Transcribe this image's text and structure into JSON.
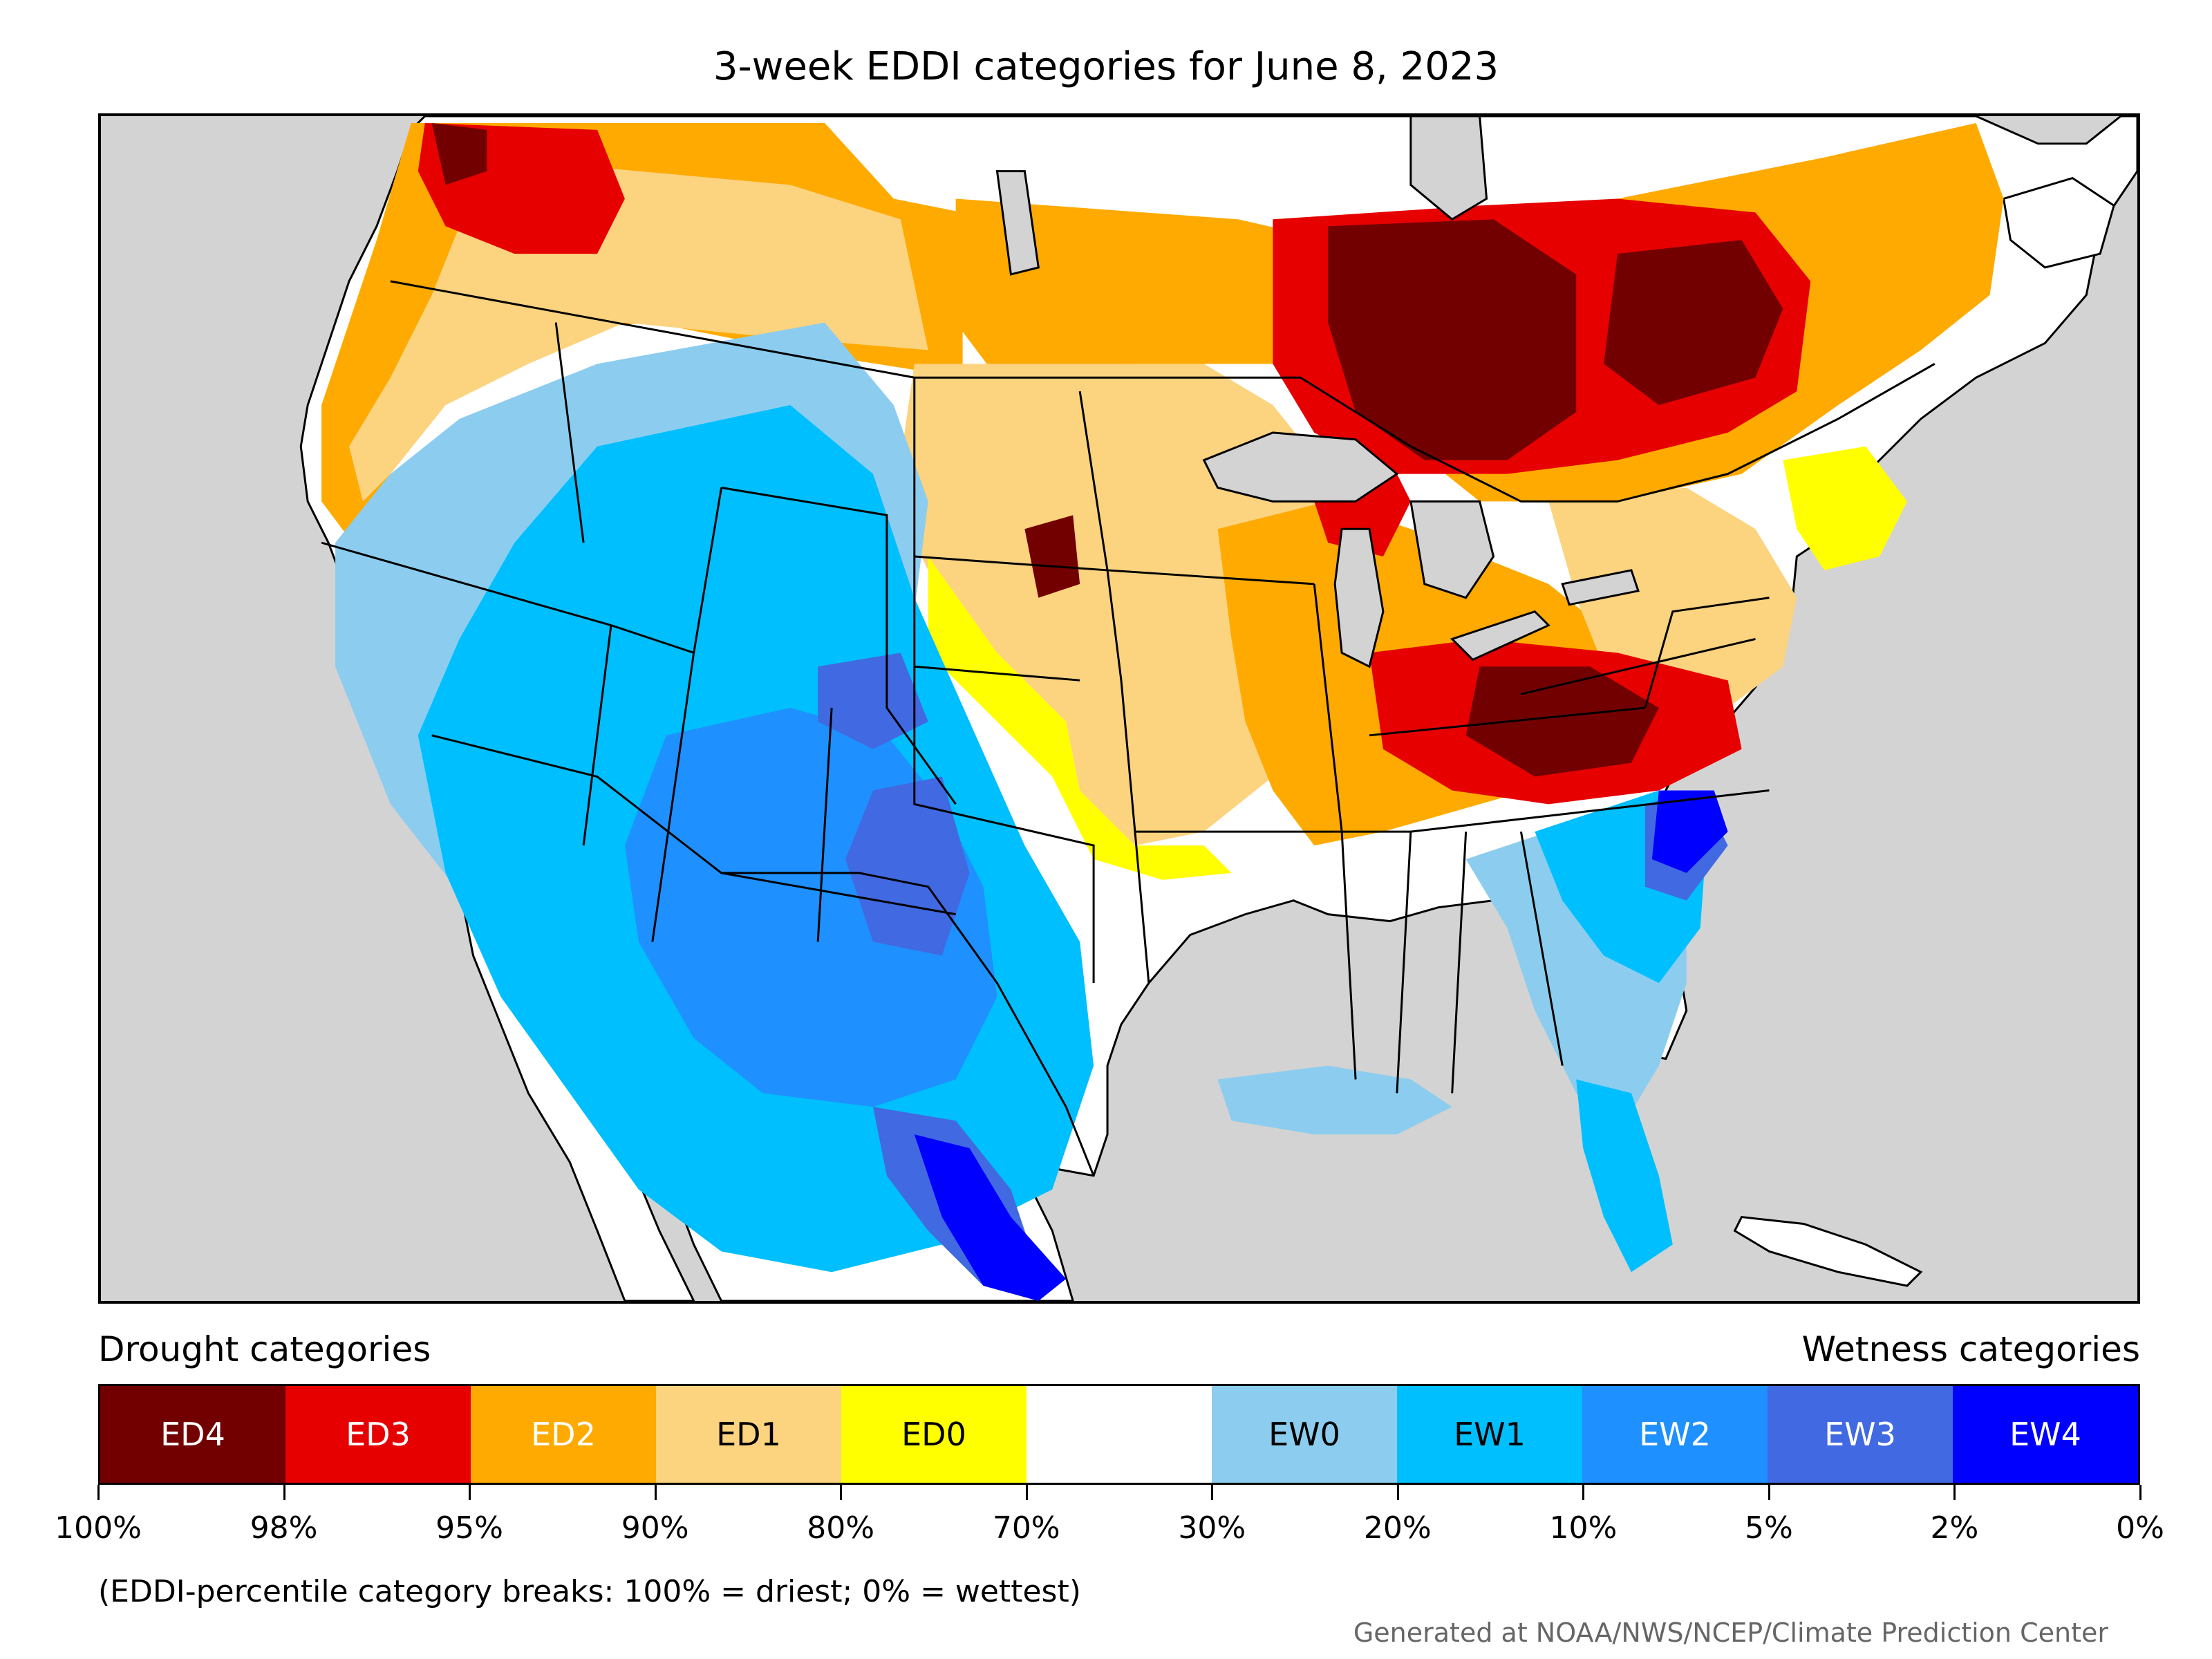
{
  "title": "3-week EDDI categories for June 8, 2023",
  "legend": {
    "left_title": "Drought categories",
    "right_title": "Wetness categories",
    "categories": [
      {
        "label": "ED4",
        "color": "#730000",
        "text_color": "#ffffff"
      },
      {
        "label": "ED3",
        "color": "#e60000",
        "text_color": "#ffffff"
      },
      {
        "label": "ED2",
        "color": "#ffaa00",
        "text_color": "#ffffff"
      },
      {
        "label": "ED1",
        "color": "#fcd37f",
        "text_color": "#000000"
      },
      {
        "label": "ED0",
        "color": "#ffff00",
        "text_color": "#000000"
      },
      {
        "label": "",
        "color": "#ffffff",
        "text_color": "#000000"
      },
      {
        "label": "EW0",
        "color": "#8ccdef",
        "text_color": "#000000"
      },
      {
        "label": "EW1",
        "color": "#00bfff",
        "text_color": "#000000"
      },
      {
        "label": "EW2",
        "color": "#1e90ff",
        "text_color": "#ffffff"
      },
      {
        "label": "EW3",
        "color": "#4169e1",
        "text_color": "#ffffff"
      },
      {
        "label": "EW4",
        "color": "#0000ff",
        "text_color": "#ffffff"
      }
    ],
    "tick_labels": [
      "100%",
      "98%",
      "95%",
      "90%",
      "80%",
      "70%",
      "30%",
      "20%",
      "10%",
      "5%",
      "2%",
      "0%"
    ]
  },
  "note": "(EDDI-percentile category breaks: 100% = driest; 0% = wettest)",
  "credit": "Generated at NOAA/NWS/NCEP/Climate Prediction Center",
  "map": {
    "background_color": "#d3d3d3",
    "land_color": "#ffffff",
    "water_color": "#d3d3d3",
    "boundary_color": "#000000"
  }
}
